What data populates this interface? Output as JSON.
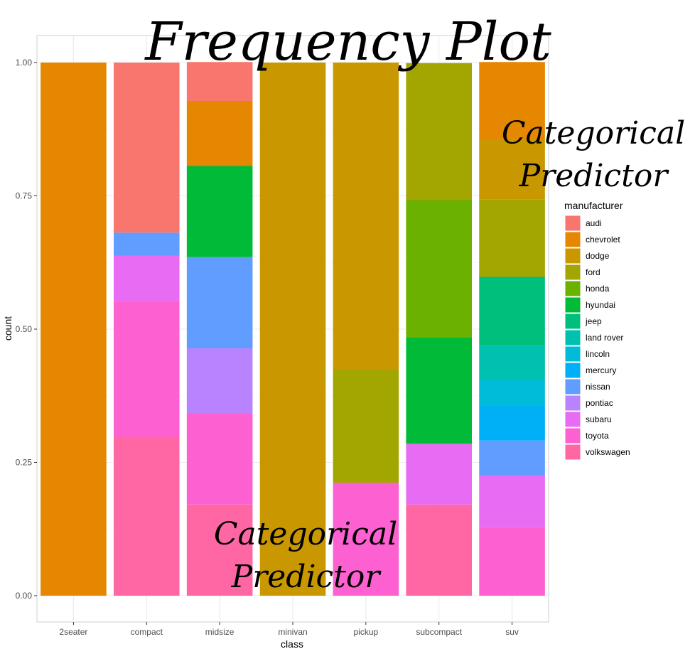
{
  "chart_data": {
    "type": "bar",
    "stacked": true,
    "normalized": true,
    "title": "Frequency Plot",
    "xlabel": "class",
    "ylabel": "count",
    "ylim": [
      0,
      1
    ],
    "yticks": [
      "0.00",
      "0.25",
      "0.50",
      "0.75",
      "1.00"
    ],
    "grid": true,
    "legend_position": "right",
    "legend_title": "manufacturer",
    "categories": [
      "2seater",
      "compact",
      "midsize",
      "minivan",
      "pickup",
      "subcompact",
      "suv"
    ],
    "series": [
      {
        "name": "audi",
        "color": "#F8766D",
        "values": [
          0,
          0.319,
          0.073,
          0,
          0,
          0,
          0
        ]
      },
      {
        "name": "chevrolet",
        "color": "#E58700",
        "values": [
          1.0,
          0,
          0.122,
          0,
          0,
          0,
          0.145
        ]
      },
      {
        "name": "dodge",
        "color": "#C99800",
        "values": [
          0,
          0,
          0,
          1.0,
          0.576,
          0,
          0.113
        ]
      },
      {
        "name": "ford",
        "color": "#A3A500",
        "values": [
          0,
          0,
          0,
          0,
          0.212,
          0.257,
          0.145
        ]
      },
      {
        "name": "honda",
        "color": "#6BB100",
        "values": [
          0,
          0,
          0,
          0,
          0,
          0.257,
          0
        ]
      },
      {
        "name": "hyundai",
        "color": "#00BA38",
        "values": [
          0,
          0,
          0.171,
          0,
          0,
          0.2,
          0
        ]
      },
      {
        "name": "jeep",
        "color": "#00BF7D",
        "values": [
          0,
          0,
          0,
          0,
          0,
          0,
          0.129
        ]
      },
      {
        "name": "land rover",
        "color": "#00C0AF",
        "values": [
          0,
          0,
          0,
          0,
          0,
          0,
          0.065
        ]
      },
      {
        "name": "lincoln",
        "color": "#00BCD8",
        "values": [
          0,
          0,
          0,
          0,
          0,
          0,
          0.048
        ]
      },
      {
        "name": "mercury",
        "color": "#00B0F6",
        "values": [
          0,
          0,
          0,
          0,
          0,
          0,
          0.065
        ]
      },
      {
        "name": "nissan",
        "color": "#619CFF",
        "values": [
          0,
          0.043,
          0.171,
          0,
          0,
          0,
          0.065
        ]
      },
      {
        "name": "pontiac",
        "color": "#B983FF",
        "values": [
          0,
          0,
          0.122,
          0,
          0,
          0,
          0
        ]
      },
      {
        "name": "subaru",
        "color": "#E76BF3",
        "values": [
          0,
          0.085,
          0,
          0,
          0,
          0.114,
          0.097
        ]
      },
      {
        "name": "toyota",
        "color": "#FD61D1",
        "values": [
          0,
          0.255,
          0.171,
          0,
          0.212,
          0,
          0.129
        ]
      },
      {
        "name": "volkswagen",
        "color": "#FF67A4",
        "values": [
          0,
          0.298,
          0.171,
          0,
          0,
          0.171,
          0
        ]
      }
    ],
    "annotations": [
      "Categorical Predictor",
      "Categorical Predictor"
    ]
  }
}
